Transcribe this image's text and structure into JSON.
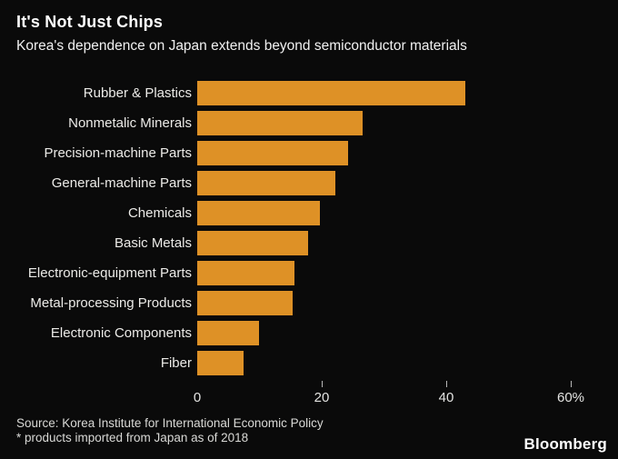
{
  "chart_data": {
    "type": "bar",
    "orientation": "horizontal",
    "title": "It's Not Just Chips",
    "subtitle": "Korea's dependence on Japan extends beyond semiconductor materials",
    "categories": [
      "Rubber & Plastics",
      "Nonmetalic Minerals",
      "Precision-machine Parts",
      "General-machine Parts",
      "Chemicals",
      "Basic Metals",
      "Electronic-equipment Parts",
      "Metal-processing Products",
      "Electronic Components",
      "Fiber"
    ],
    "values": [
      43,
      26.6,
      24.3,
      22.2,
      19.7,
      17.8,
      15.6,
      15.3,
      10,
      7.5
    ],
    "unit": "%",
    "xlim": [
      0,
      60
    ],
    "x_ticks": [
      {
        "label": "0",
        "value": 0,
        "mark": false
      },
      {
        "label": "20",
        "value": 20,
        "mark": true
      },
      {
        "label": "40",
        "value": 40,
        "mark": true
      },
      {
        "label": "60%",
        "value": 60,
        "mark": true
      }
    ],
    "grid": false,
    "legend": false,
    "bar_color": "#de9126"
  },
  "footer": {
    "source": "Source: Korea Institute for International Economic Policy",
    "footnote": "* products imported from Japan as of 2018",
    "brand": "Bloomberg"
  },
  "colors": {
    "background": "#0a0a0a",
    "bar": "#de9126",
    "title_text": "#ffffff",
    "label_text": "#ecebe8"
  }
}
